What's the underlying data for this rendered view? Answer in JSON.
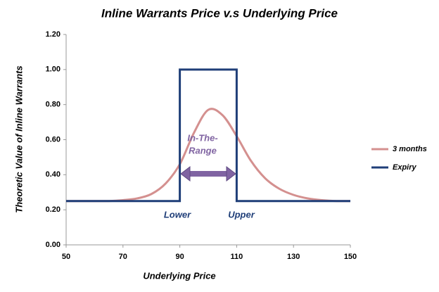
{
  "chart_data": {
    "type": "line",
    "title": "Inline Warrants Price v.s Underlying Price",
    "x_label": "Underlying Price",
    "y_label": "Theoretic Value of Inline Warrants",
    "xlim": [
      50,
      150
    ],
    "xticks": [
      50,
      70,
      90,
      110,
      130,
      150
    ],
    "ylim": [
      0,
      1.2
    ],
    "yticks": [
      {
        "value": 0,
        "label": "0.00"
      },
      {
        "value": 0.2,
        "label": "0.20"
      },
      {
        "value": 0.4,
        "label": "0.40"
      },
      {
        "value": 0.6,
        "label": "0.60"
      },
      {
        "value": 0.8,
        "label": "0.80"
      },
      {
        "value": 1.0,
        "label": "1.00"
      },
      {
        "value": 1.2,
        "label": "1.20"
      }
    ],
    "grid": false,
    "legend": "right",
    "series": [
      {
        "name": "3 months",
        "color": "#d4908f",
        "smooth": true,
        "x": [
          50,
          55,
          60,
          65,
          70,
          75,
          80,
          85,
          90,
          95,
          100,
          105,
          110,
          115,
          120,
          125,
          130,
          135,
          140,
          145,
          150
        ],
        "values": [
          0.25,
          0.25,
          0.25,
          0.25,
          0.255,
          0.265,
          0.29,
          0.35,
          0.46,
          0.64,
          0.77,
          0.74,
          0.62,
          0.48,
          0.38,
          0.32,
          0.285,
          0.265,
          0.255,
          0.25,
          0.25
        ]
      },
      {
        "name": "Expiry",
        "color": "#1f3e78",
        "smooth": false,
        "x": [
          50,
          90,
          90,
          110,
          110,
          150
        ],
        "values": [
          0.25,
          0.25,
          1.0,
          1.0,
          0.25,
          0.25
        ]
      }
    ],
    "annotations": {
      "range": [
        "In-The-",
        "Range"
      ],
      "lower": "Lower",
      "upper": "Upper"
    }
  }
}
